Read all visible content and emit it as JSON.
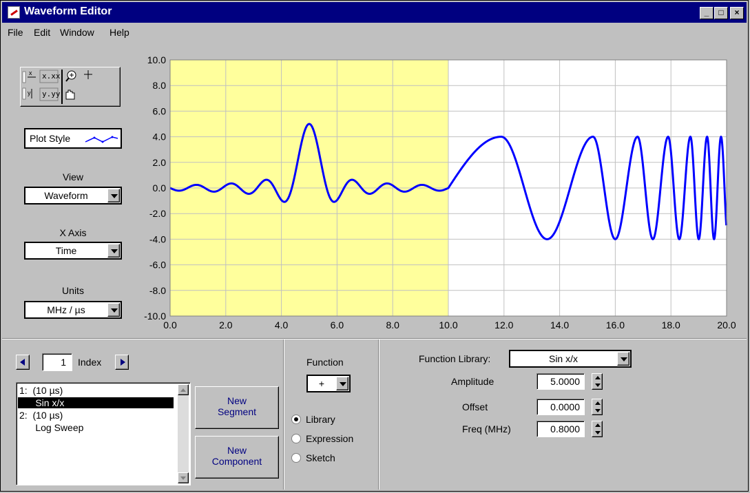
{
  "window": {
    "title": "Waveform Editor"
  },
  "menu": [
    "File",
    "Edit",
    "Window",
    "Help"
  ],
  "titlebar_buttons": {
    "minimize": "_",
    "maximize": "□",
    "close": "×"
  },
  "palette": {
    "icons": [
      "x-scale-icon",
      "x-format-icon",
      "zoom-icon",
      "crosshair-icon",
      "y-scale-icon",
      "y-format-icon",
      "pan-hand-icon"
    ],
    "x_format_text": "x.xx",
    "y_format_text": "y.yy"
  },
  "plot_style": {
    "label": "Plot Style"
  },
  "view": {
    "label": "View",
    "value": "Waveform"
  },
  "xaxis_select": {
    "label": "X Axis",
    "value": "Time"
  },
  "units": {
    "label": "Units",
    "value": "MHz / µs"
  },
  "chart_data": {
    "type": "line",
    "x_ticks": [
      "0.0",
      "2.0",
      "4.0",
      "6.0",
      "8.0",
      "10.0",
      "12.0",
      "14.0",
      "16.0",
      "18.0",
      "20.0"
    ],
    "y_ticks": [
      "10.0",
      "8.0",
      "6.0",
      "4.0",
      "2.0",
      "0.0",
      "-2.0",
      "-4.0",
      "-6.0",
      "-8.0",
      "-10.0"
    ],
    "xlim": [
      0,
      20
    ],
    "ylim": [
      -10,
      10
    ],
    "highlight_range": [
      0,
      10
    ],
    "grid": true,
    "series": [
      {
        "color": "#0000ff",
        "segments": [
          {
            "function": "Sin x/x",
            "x_range": [
              0,
              10
            ],
            "amplitude": 5.0,
            "offset": 0.0,
            "freq": 0.8,
            "center": 5.0
          },
          {
            "function": "Log Sweep",
            "x_range": [
              10,
              20
            ],
            "amplitude": 4.0,
            "peaks_x": [
              11.9,
              15.2,
              16.8,
              17.9,
              18.7,
              19.3,
              19.8
            ]
          }
        ]
      }
    ],
    "colors": {
      "highlight": "#ffff9c",
      "line": "#0000ff",
      "grid": "#c0c0c0"
    }
  },
  "index": {
    "value": "1",
    "label": "Index"
  },
  "segments_list": [
    {
      "text": "1:  (10 µs)",
      "selected": false
    },
    {
      "text": "      Sin x/x",
      "selected": true
    },
    {
      "text": "2:  (10 µs)",
      "selected": false
    },
    {
      "text": "      Log Sweep",
      "selected": false
    }
  ],
  "buttons": {
    "new_segment_line1": "New",
    "new_segment_line2": "Segment",
    "new_component_line1": "New",
    "new_component_line2": "Component"
  },
  "function": {
    "label": "Function",
    "value": "+"
  },
  "source_options": [
    {
      "label": "Library",
      "selected": true
    },
    {
      "label": "Expression",
      "selected": false
    },
    {
      "label": "Sketch",
      "selected": false
    }
  ],
  "function_library": {
    "label": "Function Library:",
    "value": "Sin x/x"
  },
  "params": [
    {
      "label": "Amplitude",
      "value": "5.0000"
    },
    {
      "label": "Offset",
      "value": "0.0000"
    },
    {
      "label": "Freq (MHz)",
      "value": "0.8000"
    }
  ]
}
